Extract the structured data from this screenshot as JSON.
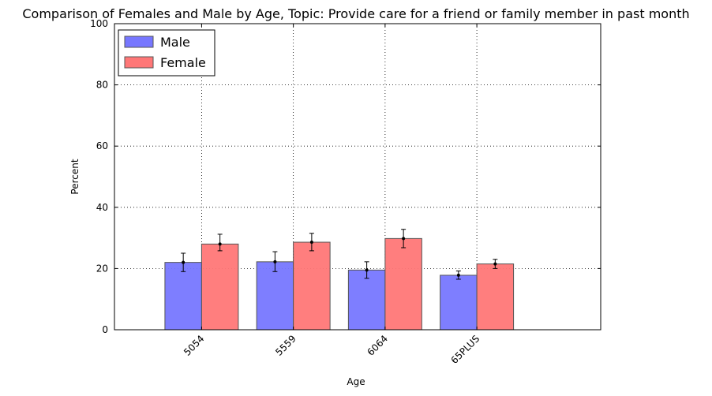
{
  "chart_data": {
    "type": "bar",
    "title": "Comparison of Females and Male by Age, Topic: Provide care for a friend or family member in past month",
    "xlabel": "Age",
    "ylabel": "Percent",
    "ylim": [
      0,
      100
    ],
    "yticks": [
      0,
      20,
      40,
      60,
      80,
      100
    ],
    "grid": true,
    "legend_position": "top-left",
    "categories": [
      "5054",
      "5559",
      "6064",
      "65PLUS"
    ],
    "series": [
      {
        "name": "Male",
        "color": "#7777ff",
        "values": [
          22.0,
          22.2,
          19.5,
          17.8
        ],
        "error_low": [
          19.0,
          19.0,
          16.8,
          16.5
        ],
        "error_high": [
          25.0,
          25.5,
          22.2,
          19.2
        ]
      },
      {
        "name": "Female",
        "color": "#ff7777",
        "values": [
          28.0,
          28.6,
          29.8,
          21.5
        ],
        "error_low": [
          25.8,
          25.8,
          26.8,
          20.0
        ],
        "error_high": [
          31.2,
          31.5,
          32.8,
          23.0
        ]
      }
    ]
  }
}
